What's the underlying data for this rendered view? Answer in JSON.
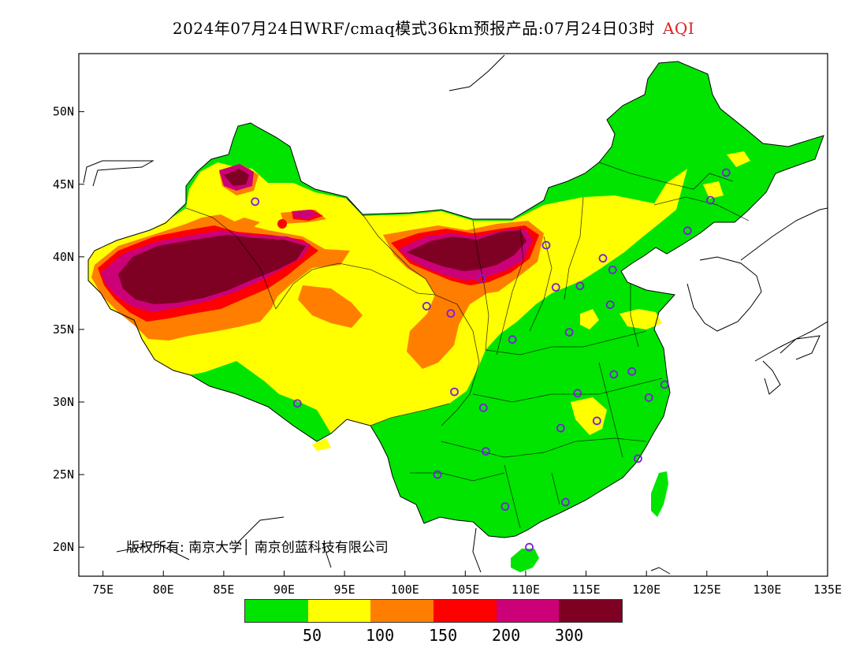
{
  "title": {
    "main": "2024年07月24日WRF/cmaq模式36km预报产品:07月24日03时",
    "variable": "AQI"
  },
  "map": {
    "lon_ticks": [
      "75E",
      "80E",
      "85E",
      "90E",
      "95E",
      "100E",
      "105E",
      "110E",
      "115E",
      "120E",
      "125E",
      "130E",
      "135E"
    ],
    "lat_ticks": [
      "50N",
      "45N",
      "40N",
      "35N",
      "30N",
      "25N",
      "20N"
    ],
    "lon_range": [
      73,
      135
    ],
    "lat_range": [
      18,
      54
    ]
  },
  "legend": {
    "colors": [
      "#00e400",
      "#ffff00",
      "#ff7e00",
      "#ff0000",
      "#cc0077",
      "#7e0023"
    ],
    "labels": [
      "50",
      "100",
      "150",
      "200",
      "300"
    ]
  },
  "copyright": "版权所有: 南京大学│ 南京创蓝科技有限公司",
  "stations": [
    {
      "lon": 87.6,
      "lat": 43.8
    },
    {
      "lon": 91.1,
      "lat": 29.9
    },
    {
      "lon": 101.8,
      "lat": 36.6
    },
    {
      "lon": 103.8,
      "lat": 36.1
    },
    {
      "lon": 106.3,
      "lat": 38.5
    },
    {
      "lon": 111.7,
      "lat": 40.8
    },
    {
      "lon": 116.4,
      "lat": 39.9
    },
    {
      "lon": 117.2,
      "lat": 39.1
    },
    {
      "lon": 114.5,
      "lat": 38.0
    },
    {
      "lon": 112.5,
      "lat": 37.9
    },
    {
      "lon": 117.0,
      "lat": 36.7
    },
    {
      "lon": 113.6,
      "lat": 34.8
    },
    {
      "lon": 108.9,
      "lat": 34.3
    },
    {
      "lon": 104.1,
      "lat": 30.7
    },
    {
      "lon": 106.5,
      "lat": 29.6
    },
    {
      "lon": 114.3,
      "lat": 30.6
    },
    {
      "lon": 112.9,
      "lat": 28.2
    },
    {
      "lon": 115.9,
      "lat": 28.7
    },
    {
      "lon": 117.3,
      "lat": 31.9
    },
    {
      "lon": 118.8,
      "lat": 32.1
    },
    {
      "lon": 120.2,
      "lat": 30.3
    },
    {
      "lon": 121.5,
      "lat": 31.2
    },
    {
      "lon": 119.3,
      "lat": 26.1
    },
    {
      "lon": 113.3,
      "lat": 23.1
    },
    {
      "lon": 108.3,
      "lat": 22.8
    },
    {
      "lon": 106.7,
      "lat": 26.6
    },
    {
      "lon": 102.7,
      "lat": 25.0
    },
    {
      "lon": 110.3,
      "lat": 20.0
    },
    {
      "lon": 123.4,
      "lat": 41.8
    },
    {
      "lon": 125.3,
      "lat": 43.9
    },
    {
      "lon": 126.6,
      "lat": 45.8
    }
  ]
}
